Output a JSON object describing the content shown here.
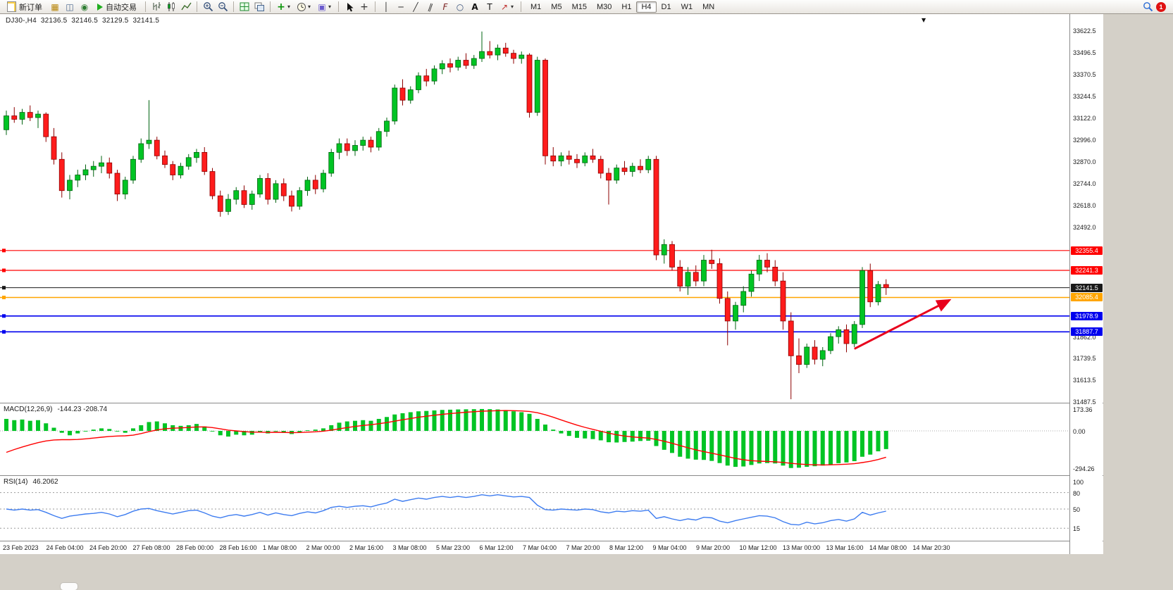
{
  "toolbar": {
    "new_order_label": "新订单",
    "auto_trading_label": "自动交易",
    "timeframes": [
      "M1",
      "M5",
      "M15",
      "M30",
      "H1",
      "H4",
      "D1",
      "W1",
      "MN"
    ],
    "active_timeframe": "H4",
    "notification_badge": "1",
    "icon_glyphs": {
      "profiles": "▦",
      "market_watch": "◫",
      "navigator": "◉",
      "indicators": "+",
      "template": "▣",
      "cross": "+",
      "vline": "│",
      "hline": "─",
      "trend": "╱",
      "channel": "∥",
      "fib": "F",
      "shapes": "○",
      "text": "A",
      "label": "T",
      "arrows": "↗",
      "caret": "▾",
      "shift_marker": "▼"
    },
    "accent_colors": {
      "badge": "#e01212",
      "autotrade_play": "#1fae1f"
    }
  },
  "chart": {
    "header": {
      "symbol_period": "DJ30-,H4",
      "open": "32136.5",
      "high": "32146.5",
      "low": "32129.5",
      "close": "32141.5"
    }
  },
  "chart_data": {
    "type": "candlestick",
    "symbol": "DJ30-",
    "period": "H4",
    "up_color": "#00c424",
    "down_color": "#ff1c1c",
    "ylim": [
      31480,
      33691
    ],
    "price_axis_ticks": [
      "33622.5",
      "33496.5",
      "33370.5",
      "33244.5",
      "33122.0",
      "32996.0",
      "32870.0",
      "32744.0",
      "32618.0",
      "32492.0",
      "31862.0",
      "31739.5",
      "31613.5",
      "31487.5"
    ],
    "levels": [
      {
        "price": 32355.4,
        "label": "32355.4",
        "color": "#ff0000",
        "width": 1.2
      },
      {
        "price": 32241.3,
        "label": "32241.3",
        "color": "#ff0000",
        "width": 1.2
      },
      {
        "price": 32141.5,
        "label": "32141.5",
        "color": "#1a1a1a",
        "width": 1,
        "current": true
      },
      {
        "price": 32085.4,
        "label": "32085.4",
        "color": "#ffa500",
        "width": 1.6
      },
      {
        "price": 31978.9,
        "label": "31978.9",
        "color": "#0000ee",
        "width": 1.6
      },
      {
        "price": 31887.7,
        "label": "31887.7",
        "color": "#0000ee",
        "width": 1.6
      }
    ],
    "annotation": {
      "type": "arrow",
      "color": "#e8001c",
      "width": 3,
      "from": {
        "index": 107,
        "price": 31790
      },
      "to": {
        "index": 119,
        "price": 32070
      }
    },
    "candles": [
      [
        33050,
        33160,
        33020,
        33130
      ],
      [
        33130,
        33180,
        33090,
        33110
      ],
      [
        33110,
        33170,
        33080,
        33150
      ],
      [
        33150,
        33190,
        33100,
        33120
      ],
      [
        33120,
        33160,
        33060,
        33140
      ],
      [
        33140,
        33150,
        32980,
        33010
      ],
      [
        33010,
        33060,
        32850,
        32880
      ],
      [
        32880,
        32920,
        32660,
        32700
      ],
      [
        32700,
        32790,
        32650,
        32760
      ],
      [
        32760,
        32820,
        32720,
        32790
      ],
      [
        32790,
        32850,
        32760,
        32820
      ],
      [
        32820,
        32870,
        32780,
        32840
      ],
      [
        32840,
        32900,
        32800,
        32860
      ],
      [
        32860,
        32890,
        32770,
        32800
      ],
      [
        32800,
        32820,
        32640,
        32680
      ],
      [
        32680,
        32780,
        32650,
        32760
      ],
      [
        32760,
        32900,
        32740,
        32880
      ],
      [
        32880,
        33000,
        32860,
        32970
      ],
      [
        32970,
        33220,
        32940,
        32990
      ],
      [
        32990,
        33010,
        32880,
        32900
      ],
      [
        32900,
        32930,
        32830,
        32850
      ],
      [
        32850,
        32870,
        32760,
        32790
      ],
      [
        32790,
        32860,
        32770,
        32840
      ],
      [
        32840,
        32910,
        32820,
        32890
      ],
      [
        32890,
        32940,
        32860,
        32920
      ],
      [
        32920,
        32950,
        32790,
        32810
      ],
      [
        32810,
        32830,
        32650,
        32670
      ],
      [
        32670,
        32700,
        32550,
        32580
      ],
      [
        32580,
        32680,
        32560,
        32650
      ],
      [
        32650,
        32720,
        32620,
        32700
      ],
      [
        32700,
        32730,
        32600,
        32620
      ],
      [
        32620,
        32700,
        32590,
        32680
      ],
      [
        32680,
        32790,
        32660,
        32770
      ],
      [
        32770,
        32800,
        32620,
        32650
      ],
      [
        32650,
        32760,
        32630,
        32740
      ],
      [
        32740,
        32770,
        32640,
        32670
      ],
      [
        32670,
        32700,
        32580,
        32610
      ],
      [
        32610,
        32720,
        32590,
        32700
      ],
      [
        32700,
        32780,
        32670,
        32760
      ],
      [
        32760,
        32790,
        32680,
        32710
      ],
      [
        32710,
        32820,
        32690,
        32800
      ],
      [
        32800,
        32940,
        32780,
        32920
      ],
      [
        32920,
        33000,
        32880,
        32970
      ],
      [
        32970,
        33000,
        32900,
        32930
      ],
      [
        32930,
        32990,
        32900,
        32960
      ],
      [
        32960,
        33010,
        32930,
        32990
      ],
      [
        32990,
        33010,
        32920,
        32950
      ],
      [
        32950,
        33060,
        32930,
        33040
      ],
      [
        33040,
        33120,
        33010,
        33100
      ],
      [
        33100,
        33310,
        33080,
        33290
      ],
      [
        33290,
        33340,
        33190,
        33220
      ],
      [
        33220,
        33300,
        33200,
        33280
      ],
      [
        33280,
        33380,
        33260,
        33360
      ],
      [
        33360,
        33400,
        33300,
        33330
      ],
      [
        33330,
        33420,
        33310,
        33400
      ],
      [
        33400,
        33450,
        33370,
        33430
      ],
      [
        33430,
        33460,
        33380,
        33410
      ],
      [
        33410,
        33470,
        33390,
        33450
      ],
      [
        33450,
        33490,
        33400,
        33420
      ],
      [
        33420,
        33480,
        33400,
        33460
      ],
      [
        33460,
        33615,
        33440,
        33500
      ],
      [
        33500,
        33560,
        33460,
        33480
      ],
      [
        33480,
        33540,
        33450,
        33520
      ],
      [
        33520,
        33550,
        33470,
        33490
      ],
      [
        33490,
        33510,
        33430,
        33460
      ],
      [
        33460,
        33500,
        33430,
        33480
      ],
      [
        33480,
        33490,
        33120,
        33150
      ],
      [
        33150,
        33470,
        33130,
        33450
      ],
      [
        33450,
        33460,
        32850,
        32900
      ],
      [
        32900,
        32950,
        32840,
        32870
      ],
      [
        32870,
        32920,
        32840,
        32900
      ],
      [
        32900,
        32930,
        32850,
        32880
      ],
      [
        32880,
        32910,
        32830,
        32860
      ],
      [
        32860,
        32920,
        32840,
        32900
      ],
      [
        32900,
        32940,
        32860,
        32880
      ],
      [
        32880,
        32900,
        32770,
        32800
      ],
      [
        32800,
        32830,
        32620,
        32760
      ],
      [
        32760,
        32850,
        32740,
        32830
      ],
      [
        32830,
        32870,
        32790,
        32810
      ],
      [
        32810,
        32860,
        32780,
        32840
      ],
      [
        32840,
        32880,
        32800,
        32820
      ],
      [
        32820,
        32900,
        32800,
        32880
      ],
      [
        32880,
        32900,
        32300,
        32330
      ],
      [
        32330,
        32420,
        32280,
        32390
      ],
      [
        32390,
        32410,
        32240,
        32260
      ],
      [
        32260,
        32300,
        32120,
        32150
      ],
      [
        32150,
        32260,
        32100,
        32230
      ],
      [
        32230,
        32270,
        32150,
        32180
      ],
      [
        32180,
        32330,
        32150,
        32300
      ],
      [
        32300,
        32360,
        32250,
        32280
      ],
      [
        32280,
        32310,
        32050,
        32080
      ],
      [
        32080,
        32120,
        31810,
        31950
      ],
      [
        31950,
        32060,
        31900,
        32040
      ],
      [
        32040,
        32150,
        32000,
        32120
      ],
      [
        32120,
        32240,
        32090,
        32220
      ],
      [
        32220,
        32330,
        32180,
        32300
      ],
      [
        32300,
        32340,
        32230,
        32260
      ],
      [
        32260,
        32300,
        32150,
        32180
      ],
      [
        32180,
        32230,
        31900,
        31950
      ],
      [
        31950,
        32000,
        31500,
        31750
      ],
      [
        31750,
        31850,
        31650,
        31700
      ],
      [
        31700,
        31820,
        31680,
        31800
      ],
      [
        31800,
        31840,
        31700,
        31730
      ],
      [
        31730,
        31800,
        31690,
        31780
      ],
      [
        31780,
        31880,
        31760,
        31860
      ],
      [
        31860,
        31920,
        31820,
        31900
      ],
      [
        31900,
        31930,
        31770,
        31820
      ],
      [
        31820,
        31950,
        31800,
        31930
      ],
      [
        31930,
        32260,
        31910,
        32240
      ],
      [
        32240,
        32280,
        32030,
        32060
      ],
      [
        32060,
        32180,
        32040,
        32160
      ],
      [
        32160,
        32190,
        32100,
        32141.5
      ]
    ],
    "macd": {
      "label": "MACD(12,26,9)",
      "value": "-144.23",
      "signal_value": "-208.74",
      "scale_labels": [
        "173.36",
        "0.00",
        "-294.26"
      ],
      "hist_color": "#00c424",
      "signal_color": "#ff0000",
      "histogram": [
        95,
        85,
        90,
        80,
        85,
        60,
        25,
        -15,
        -35,
        -20,
        -5,
        10,
        20,
        15,
        -5,
        -15,
        20,
        45,
        70,
        75,
        60,
        45,
        40,
        45,
        55,
        35,
        -5,
        -35,
        -45,
        -30,
        -35,
        -30,
        -10,
        -20,
        -5,
        -15,
        -25,
        -10,
        5,
        10,
        20,
        45,
        65,
        75,
        80,
        85,
        80,
        95,
        110,
        130,
        140,
        148,
        155,
        158,
        162,
        166,
        168,
        170,
        171,
        172,
        173.36,
        172,
        170,
        165,
        155,
        148,
        135,
        95,
        50,
        10,
        -20,
        -40,
        -55,
        -60,
        -65,
        -75,
        -90,
        -92,
        -88,
        -85,
        -80,
        -78,
        -120,
        -150,
        -175,
        -205,
        -220,
        -228,
        -230,
        -238,
        -255,
        -275,
        -285,
        -282,
        -270,
        -258,
        -255,
        -258,
        -275,
        -294.26,
        -292,
        -285,
        -280,
        -275,
        -266,
        -256,
        -250,
        -240,
        -205,
        -188,
        -162,
        -144.23
      ],
      "signal": [
        -170,
        -148,
        -128,
        -110,
        -93,
        -80,
        -72,
        -70,
        -70,
        -68,
        -63,
        -57,
        -50,
        -44,
        -41,
        -39,
        -34,
        -21,
        -6,
        7,
        16,
        21,
        24,
        27,
        31,
        32,
        26,
        16,
        6,
        0,
        -6,
        -10,
        -10,
        -12,
        -11,
        -12,
        -14,
        -13,
        -10,
        -7,
        -2,
        6,
        16,
        26,
        35,
        43,
        49,
        57,
        66,
        77,
        88,
        98,
        108,
        116,
        124,
        131,
        137,
        143,
        148,
        152,
        156,
        158,
        160,
        161,
        160,
        158,
        154,
        144,
        128,
        108,
        87,
        66,
        46,
        28,
        12,
        -3,
        -18,
        -31,
        -41,
        -48,
        -53,
        -57,
        -68,
        -82,
        -98,
        -116,
        -134,
        -150,
        -164,
        -177,
        -190,
        -204,
        -218,
        -229,
        -236,
        -240,
        -242,
        -245,
        -250,
        -257,
        -263,
        -267,
        -269,
        -270,
        -269,
        -267,
        -264,
        -260,
        -251,
        -241,
        -227,
        -208.74
      ]
    },
    "rsi": {
      "label": "RSI(14)",
      "value": "46.2062",
      "line_color": "#3d7cf0",
      "scale_levels": [
        100,
        80,
        50,
        15
      ],
      "values": [
        50,
        48,
        50,
        48,
        49,
        44,
        38,
        33,
        37,
        39,
        41,
        42,
        44,
        41,
        36,
        40,
        46,
        50,
        51,
        47,
        44,
        41,
        44,
        47,
        48,
        43,
        37,
        34,
        38,
        40,
        37,
        40,
        44,
        39,
        43,
        40,
        38,
        42,
        45,
        43,
        47,
        53,
        55,
        53,
        55,
        56,
        54,
        58,
        61,
        68,
        64,
        67,
        70,
        68,
        71,
        73,
        71,
        73,
        71,
        73,
        76,
        74,
        76,
        74,
        72,
        73,
        71,
        57,
        49,
        48,
        50,
        49,
        48,
        50,
        49,
        45,
        43,
        46,
        45,
        47,
        46,
        48,
        33,
        36,
        32,
        29,
        32,
        30,
        35,
        34,
        28,
        25,
        29,
        32,
        35,
        38,
        37,
        34,
        27,
        22,
        21,
        26,
        23,
        25,
        29,
        31,
        28,
        32,
        44,
        39,
        43,
        46.2
      ]
    },
    "time_labels": [
      "23 Feb 2023",
      "24 Feb 04:00",
      "24 Feb 20:00",
      "27 Feb 08:00",
      "28 Feb 00:00",
      "28 Feb 16:00",
      "1 Mar 08:00",
      "2 Mar 00:00",
      "2 Mar 16:00",
      "3 Mar 08:00",
      "5 Mar 23:00",
      "6 Mar 12:00",
      "7 Mar 04:00",
      "7 Mar 20:00",
      "8 Mar 12:00",
      "9 Mar 04:00",
      "9 Mar 20:00",
      "10 Mar 12:00",
      "13 Mar 00:00",
      "13 Mar 16:00",
      "14 Mar 08:00",
      "14 Mar 20:30"
    ]
  }
}
